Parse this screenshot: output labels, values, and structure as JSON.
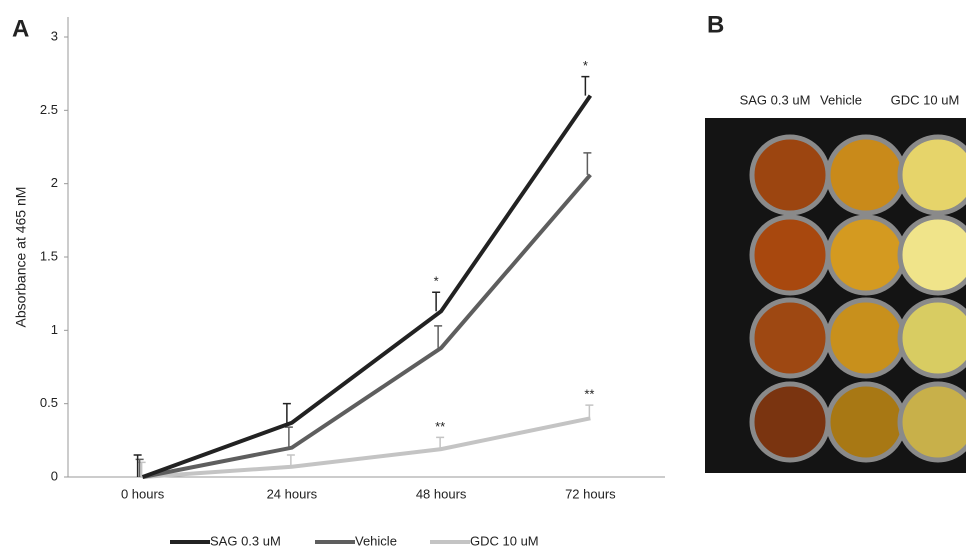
{
  "panel_labels": [
    "A",
    "B"
  ],
  "chart_data": {
    "type": "line",
    "y_label": "Absorbance at 465 nM",
    "categories": [
      "0 hours",
      "24 hours",
      "48 hours",
      "72 hours"
    ],
    "ylim": [
      0,
      3
    ],
    "yticks": [
      0,
      0.5,
      1,
      1.5,
      2,
      2.5,
      3
    ],
    "series": [
      {
        "name": "SAG 0.3 uM",
        "color": "#222222",
        "values": [
          0,
          0.37,
          1.13,
          2.6
        ],
        "errors": [
          0.15,
          0.13,
          0.13,
          0.13
        ],
        "annotations": [
          null,
          null,
          "*",
          "*"
        ]
      },
      {
        "name": "Vehicle",
        "color": "#5e5e5e",
        "values": [
          0,
          0.2,
          0.88,
          2.06
        ],
        "errors": [
          0.12,
          0.14,
          0.15,
          0.15
        ],
        "annotations": [
          null,
          null,
          null,
          null
        ]
      },
      {
        "name": "GDC 10 uM",
        "color": "#c4c4c4",
        "values": [
          0,
          0.07,
          0.19,
          0.4
        ],
        "errors": [
          0.1,
          0.08,
          0.08,
          0.09
        ],
        "annotations": [
          null,
          null,
          "**",
          "**"
        ]
      }
    ]
  },
  "photo": {
    "column_labels": [
      "SAG 0.3 uM",
      "Vehicle",
      "GDC 10 uM"
    ]
  }
}
